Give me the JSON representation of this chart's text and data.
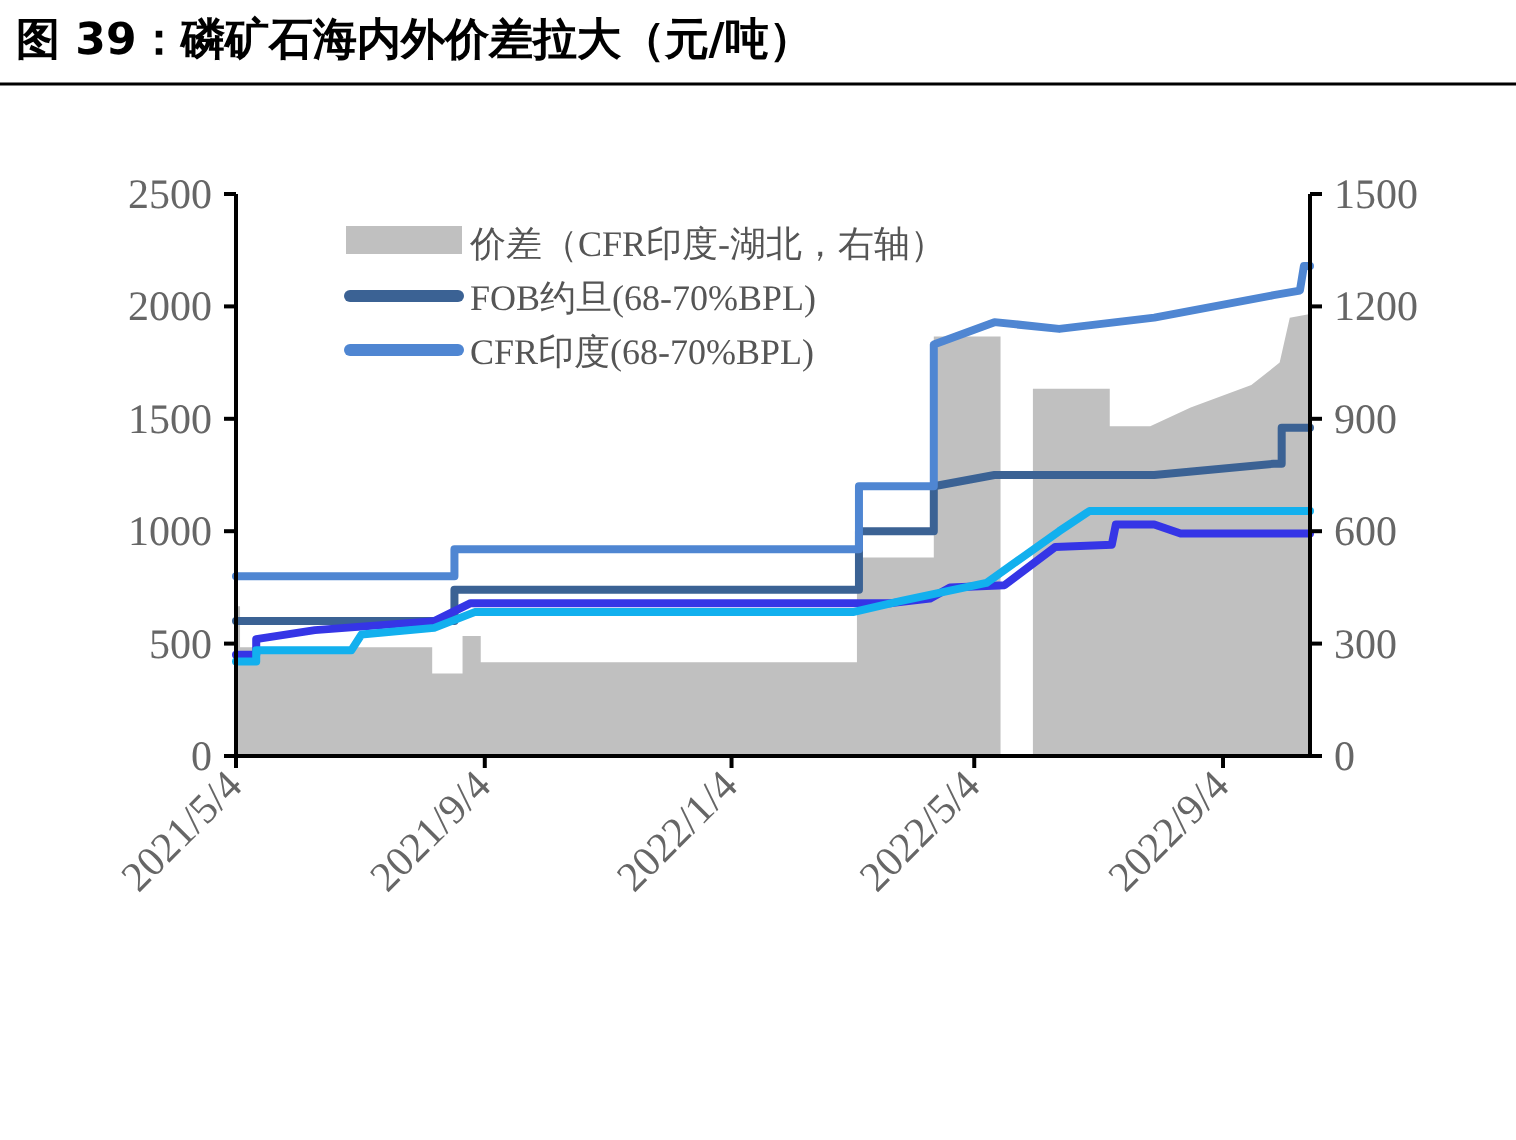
{
  "chart_data": {
    "type": "line",
    "title": "图 39：磷矿石海内外价差拉大（元/吨）",
    "xlim": [
      "2021-05-04",
      "2022-10-17"
    ],
    "xticks": [
      {
        "value": "2021-05-04",
        "label": "2021/5/4"
      },
      {
        "value": "2021-09-04",
        "label": "2021/9/4"
      },
      {
        "value": "2022-01-04",
        "label": "2022/1/4"
      },
      {
        "value": "2022-05-04",
        "label": "2022/5/4"
      },
      {
        "value": "2022-09-04",
        "label": "2022/9/4"
      }
    ],
    "ylim": [
      0,
      2500
    ],
    "yticks": [
      0,
      500,
      1000,
      1500,
      2000,
      2500
    ],
    "y2lim": [
      0,
      1500
    ],
    "y2ticks": [
      0,
      300,
      600,
      900,
      1200,
      1500
    ],
    "legend": "top left",
    "series": [
      {
        "name": "价差（CFR印度-湖北，右轴）",
        "type": "area",
        "axis": "y2",
        "color": "#c0c0c0",
        "x": [
          "2021-05-04",
          "2021-05-06",
          "2021-05-06",
          "2021-08-09",
          "2021-08-09",
          "2021-08-24",
          "2021-08-24",
          "2021-09-02",
          "2021-09-02",
          "2022-03-07",
          "2022-03-07",
          "2022-04-14",
          "2022-04-14",
          "2022-05-17",
          "2022-05-17",
          "2022-06-02",
          "2022-06-02",
          "2022-07-10",
          "2022-07-10",
          "2022-07-30",
          "2022-08-19",
          "2022-09-18",
          "2022-10-02",
          "2022-10-07",
          "2022-10-17"
        ],
        "values": [
          400,
          400,
          290,
          290,
          220,
          220,
          320,
          320,
          250,
          250,
          530,
          530,
          1120,
          1120,
          0,
          0,
          980,
          980,
          880,
          880,
          930,
          990,
          1050,
          1170,
          1180
        ]
      },
      {
        "name": "FOB约旦(68-70%BPL)",
        "type": "line",
        "color": "#3b6294",
        "x": [
          "2021-05-04",
          "2021-08-20",
          "2021-08-20",
          "2022-03-08",
          "2022-03-08",
          "2022-04-14",
          "2022-04-14",
          "2022-05-14",
          "2022-08-01",
          "2022-09-29",
          "2022-10-03",
          "2022-10-03",
          "2022-10-17"
        ],
        "values": [
          600,
          600,
          740,
          740,
          1000,
          1000,
          1200,
          1250,
          1250,
          1300,
          1300,
          1460,
          1460
        ]
      },
      {
        "name": "CFR印度(68-70%BPL)",
        "type": "line",
        "color": "#4f86d2",
        "x": [
          "2021-05-04",
          "2021-08-20",
          "2021-08-20",
          "2022-03-08",
          "2022-03-08",
          "2022-04-14",
          "2022-04-14",
          "2022-05-14",
          "2022-06-15",
          "2022-08-01",
          "2022-09-29",
          "2022-10-12",
          "2022-10-14",
          "2022-10-17"
        ],
        "values": [
          800,
          800,
          920,
          920,
          1200,
          1200,
          1830,
          1930,
          1900,
          1950,
          2050,
          2070,
          2180,
          2180
        ]
      },
      {
        "type": "line",
        "color": "#3535e6",
        "x": [
          "2021-05-04",
          "2021-05-14",
          "2021-05-14",
          "2021-06-12",
          "2021-08-10",
          "2021-08-28",
          "2022-03-24",
          "2022-04-12",
          "2022-04-22",
          "2022-05-19",
          "2022-06-13",
          "2022-07-11",
          "2022-07-13",
          "2022-08-01",
          "2022-08-14",
          "2022-10-17"
        ],
        "values": [
          450,
          450,
          520,
          560,
          600,
          680,
          680,
          700,
          750,
          760,
          930,
          940,
          1030,
          1030,
          990,
          990
        ]
      },
      {
        "type": "line",
        "color": "#12b0ee",
        "x": [
          "2021-05-04",
          "2021-05-14",
          "2021-05-14",
          "2021-06-30",
          "2021-07-05",
          "2021-08-10",
          "2021-08-30",
          "2022-03-05",
          "2022-03-29",
          "2022-05-10",
          "2022-06-15",
          "2022-06-30",
          "2022-10-17"
        ],
        "values": [
          420,
          420,
          470,
          470,
          540,
          570,
          640,
          640,
          690,
          770,
          1000,
          1090,
          1090
        ]
      }
    ]
  }
}
